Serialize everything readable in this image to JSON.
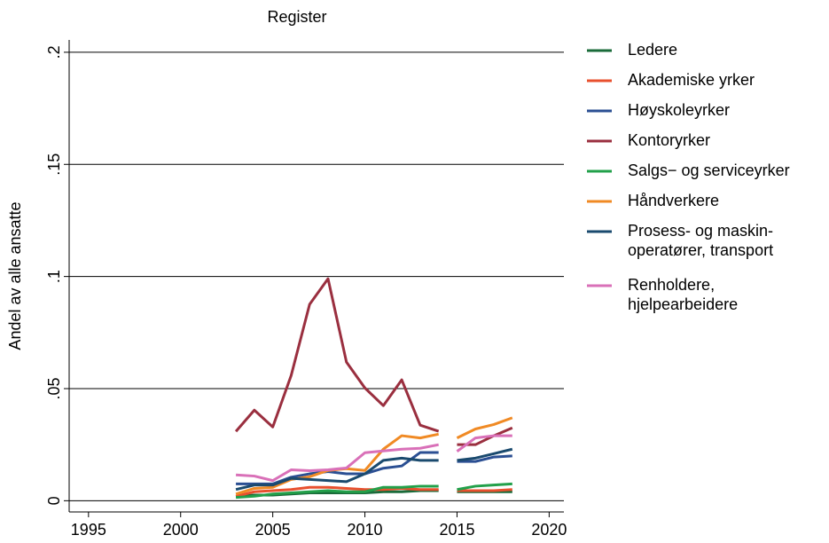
{
  "chart_data": {
    "type": "line",
    "title": "Register",
    "ylabel": "Andel av alle ansatte",
    "x": [
      2003,
      2004,
      2005,
      2006,
      2007,
      2008,
      2009,
      2010,
      2011,
      2012,
      2013,
      2014,
      null,
      2015,
      2016,
      2017,
      2018
    ],
    "xlim": [
      1993.95,
      2020.8
    ],
    "xticks": [
      1995,
      2000,
      2005,
      2010,
      2015,
      2020
    ],
    "ylim": [
      -0.005,
      0.2055
    ],
    "yticks": [
      0,
      {
        "value": 0.05,
        "label": ".05"
      },
      {
        "value": 0.1,
        "label": ".1"
      },
      {
        "value": 0.15,
        "label": ".15"
      },
      {
        "value": 0.2,
        "label": ".2"
      }
    ],
    "grid": true,
    "legend": "right",
    "series": [
      {
        "name": "Ledere",
        "color": "#1a6b3a",
        "values": [
          0.002,
          0.0025,
          0.0025,
          0.003,
          0.0035,
          0.0035,
          0.0035,
          0.0035,
          0.004,
          0.004,
          0.0045,
          0.0045,
          null,
          0.004,
          0.004,
          0.004,
          0.004
        ]
      },
      {
        "name": "Akademiske yrker",
        "color": "#e8502e",
        "values": [
          0.002,
          0.004,
          0.0045,
          0.005,
          0.006,
          0.006,
          0.0055,
          0.005,
          0.005,
          0.0055,
          0.005,
          0.005,
          null,
          0.0045,
          0.0045,
          0.0045,
          0.005
        ]
      },
      {
        "name": "Høyskoleyrker",
        "color": "#2b4f93",
        "values": [
          0.0075,
          0.0075,
          0.0075,
          0.0105,
          0.012,
          0.013,
          0.012,
          0.012,
          0.0145,
          0.0155,
          0.0215,
          0.0215,
          null,
          0.0175,
          0.0175,
          0.0195,
          0.02
        ]
      },
      {
        "name": "Kontoryrker",
        "color": "#9a2f3f",
        "values": [
          0.0309,
          0.0404,
          0.0329,
          0.0559,
          0.0876,
          0.099,
          0.0618,
          0.0503,
          0.0424,
          0.0539,
          0.0337,
          0.031,
          null,
          0.025,
          0.025,
          0.029,
          0.0325
        ]
      },
      {
        "name": "Salgs− og serviceyrker",
        "color": "#22a04a",
        "values": [
          0.0015,
          0.002,
          0.003,
          0.0035,
          0.004,
          0.0045,
          0.004,
          0.004,
          0.006,
          0.006,
          0.0065,
          0.0065,
          null,
          0.005,
          0.0065,
          0.007,
          0.0075
        ]
      },
      {
        "name": "Håndverkere",
        "color": "#f08a24",
        "values": [
          0.003,
          0.0055,
          0.006,
          0.0095,
          0.0107,
          0.0135,
          0.0143,
          0.0135,
          0.023,
          0.029,
          0.028,
          0.0297,
          null,
          0.028,
          0.032,
          0.034,
          0.037
        ]
      },
      {
        "name": "Prosess- og maskin-\noperatører, transport",
        "color": "#1a4a6e",
        "values": [
          0.005,
          0.007,
          0.007,
          0.01,
          0.0095,
          0.009,
          0.0085,
          0.012,
          0.018,
          0.019,
          0.018,
          0.018,
          null,
          0.018,
          0.019,
          0.021,
          0.023
        ]
      },
      {
        "name": "Renholdere,\nhjelpearbeidere",
        "color": "#d970b8",
        "values": [
          0.0115,
          0.011,
          0.009,
          0.0138,
          0.0134,
          0.0138,
          0.0146,
          0.0214,
          0.0222,
          0.023,
          0.0234,
          0.025,
          null,
          0.022,
          0.028,
          0.029,
          0.029
        ]
      }
    ]
  }
}
